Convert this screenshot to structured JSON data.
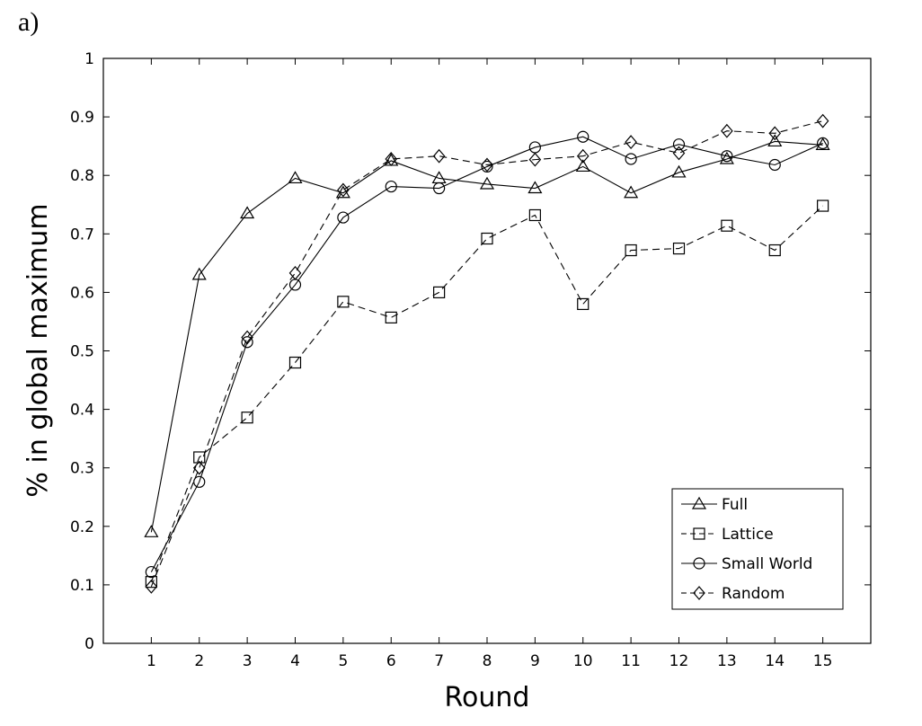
{
  "panel_label": "a)",
  "chart_data": {
    "type": "line",
    "title": "",
    "xlabel": "Round",
    "ylabel": "% in global maximum",
    "x": [
      1,
      2,
      3,
      4,
      5,
      6,
      7,
      8,
      9,
      10,
      11,
      12,
      13,
      14,
      15
    ],
    "xlim": [
      0,
      16
    ],
    "ylim": [
      0,
      1
    ],
    "yticks": [
      0,
      0.1,
      0.2,
      0.3,
      0.4,
      0.5,
      0.6,
      0.7,
      0.8,
      0.9,
      1
    ],
    "ytick_labels": [
      "0",
      "0.1",
      "0.2",
      "0.3",
      "0.4",
      "0.5",
      "0.6",
      "0.7",
      "0.8",
      "0.9",
      "1"
    ],
    "xtick_labels": [
      "1",
      "2",
      "3",
      "4",
      "5",
      "6",
      "7",
      "8",
      "9",
      "10",
      "11",
      "12",
      "13",
      "14",
      "15"
    ],
    "grid": false,
    "legend_position": "bottom-right",
    "series": [
      {
        "name": "Full",
        "marker": "triangle",
        "line": "solid",
        "values": [
          0.19,
          0.63,
          0.735,
          0.795,
          0.77,
          0.825,
          0.795,
          0.785,
          0.778,
          0.815,
          0.77,
          0.805,
          0.828,
          0.858,
          0.852
        ]
      },
      {
        "name": "Lattice",
        "marker": "square",
        "line": "dashed",
        "values": [
          0.105,
          0.318,
          0.386,
          0.48,
          0.584,
          0.557,
          0.6,
          0.692,
          0.732,
          0.58,
          0.672,
          0.675,
          0.714,
          0.672,
          0.748
        ]
      },
      {
        "name": "Small World",
        "marker": "circle",
        "line": "solid",
        "values": [
          0.122,
          0.276,
          0.515,
          0.613,
          0.728,
          0.781,
          0.778,
          0.815,
          0.848,
          0.866,
          0.828,
          0.853,
          0.833,
          0.818,
          0.855
        ]
      },
      {
        "name": "Random",
        "marker": "diamond",
        "line": "dashed",
        "values": [
          0.097,
          0.3,
          0.523,
          0.633,
          0.775,
          0.828,
          0.833,
          0.818,
          0.827,
          0.833,
          0.857,
          0.838,
          0.876,
          0.872,
          0.893
        ]
      }
    ]
  }
}
